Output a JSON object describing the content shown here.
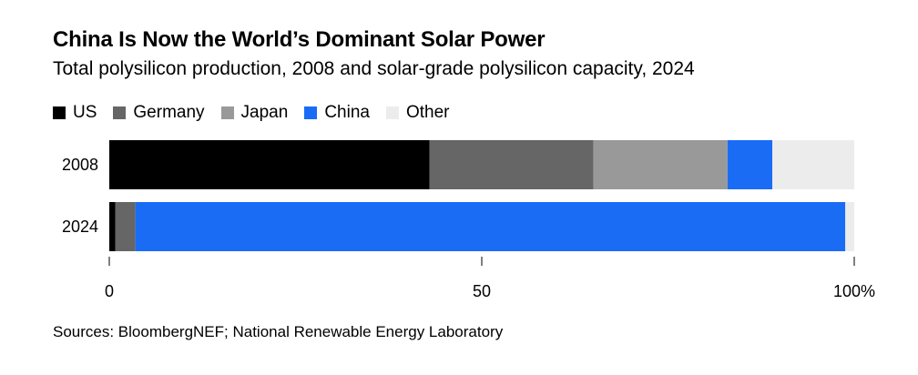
{
  "chart_data": {
    "type": "bar",
    "orientation": "horizontal",
    "stacked": true,
    "title": "China Is Now the World’s Dominant Solar Power",
    "subtitle": "Total polysilicon production, 2008 and solar-grade polysilicon capacity, 2024",
    "categories": [
      "2008",
      "2024"
    ],
    "series": [
      {
        "name": "US",
        "color": "#000000",
        "values": [
          43,
          0.8
        ]
      },
      {
        "name": "Germany",
        "color": "#666666",
        "values": [
          22,
          2.7
        ]
      },
      {
        "name": "Japan",
        "color": "#999999",
        "values": [
          18,
          0
        ]
      },
      {
        "name": "China",
        "color": "#1a6cf5",
        "values": [
          6,
          95.3
        ]
      },
      {
        "name": "Other",
        "color": "#ececec",
        "values": [
          11,
          1.2
        ]
      }
    ],
    "xlim": [
      0,
      100
    ],
    "xticks": [
      0,
      50,
      100
    ],
    "xtick_labels": [
      "0",
      "50",
      "100%"
    ],
    "legend_position": "top-left",
    "grid": false,
    "source": "Sources: BloombergNEF; National Renewable Energy Laboratory"
  }
}
